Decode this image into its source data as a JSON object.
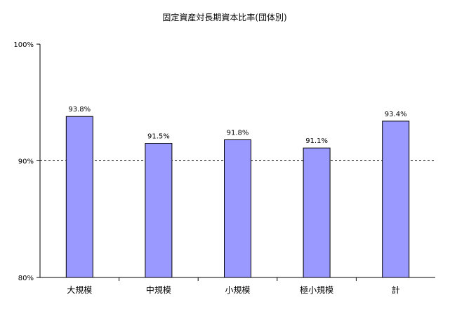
{
  "chart_data": {
    "type": "bar",
    "title": "固定資産対長期資本比率(団体別)",
    "xlabel": "",
    "ylabel": "",
    "categories": [
      "大規模",
      "中規模",
      "小規模",
      "極小規模",
      "計"
    ],
    "values": [
      93.8,
      91.5,
      91.8,
      91.1,
      93.4
    ],
    "value_labels": [
      "93.8%",
      "91.5%",
      "91.8%",
      "91.1%",
      "93.4%"
    ],
    "ylim": [
      80,
      100
    ],
    "yticks": [
      80,
      90,
      100
    ],
    "ytick_labels": [
      "80%",
      "90%",
      "100%"
    ],
    "grid": "dashed line at 90%",
    "legend": "none",
    "bar_color": "#9999ff",
    "bar_edge_color": "#000000"
  }
}
